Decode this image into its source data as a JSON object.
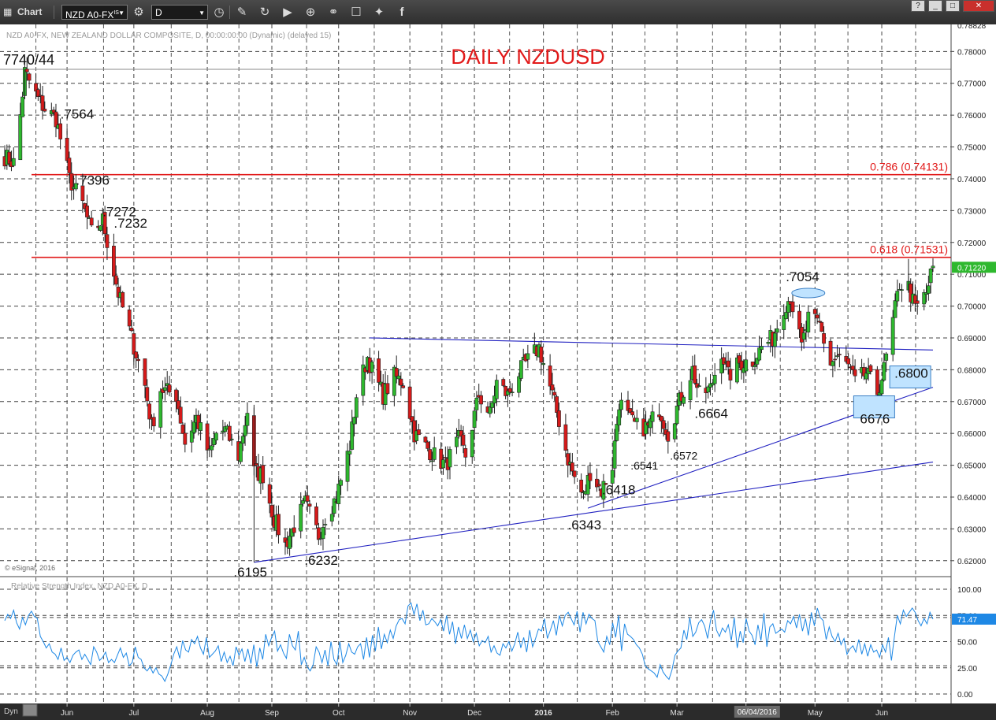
{
  "toolbar": {
    "app_label": "Chart",
    "symbol": "NZD A0-FX",
    "symbol_superscript": "IS",
    "interval": "D",
    "icons": [
      "chart-icon",
      "dropdown-arrow-icon",
      "settings-icon",
      "clock-icon",
      "pencil-icon",
      "cycle-icon",
      "play-icon",
      "zoom-icon",
      "link-icon",
      "comment-icon",
      "twitter-icon",
      "facebook-icon"
    ],
    "window_buttons": [
      "?",
      "_",
      "□",
      "✕"
    ]
  },
  "chart_data": [
    {
      "type": "candlestick",
      "title": "DAILY NZDUSD",
      "subtitle": "NZD A0-FX, NEW ZEALAND DOLLAR COMPOSITE, D, 00:00:00:00 (Dynamic) (delayed 15)",
      "copyright": "© eSignal, 2016",
      "ylim": [
        0.615,
        0.7885
      ],
      "y_ticks": [
        0.62,
        0.63,
        0.64,
        0.65,
        0.66,
        0.67,
        0.68,
        0.69,
        0.7,
        0.71,
        0.72,
        0.73,
        0.74,
        0.75,
        0.76,
        0.77,
        0.78
      ],
      "y_tick_labels": [
        "0.62000",
        "0.63000",
        "0.64000",
        "0.65000",
        "0.66000",
        "0.67000",
        "0.68000",
        "0.69000",
        "0.70000",
        "0.71000",
        "0.72000",
        "0.73000",
        "0.74000",
        "0.75000",
        "0.76000",
        "0.77000",
        "0.78000"
      ],
      "top_value_label": "0.78828",
      "last_price_label": "0.71220",
      "last_price": 0.7122,
      "x_ticks": [
        "Jun",
        "Jul",
        "Aug",
        "Sep",
        "Oct",
        "Nov",
        "Dec",
        "2016",
        "Feb",
        "Mar",
        "Apr",
        "May",
        "Jun"
      ],
      "x_tick_dates": [
        "2015-06-01",
        "2015-07-01",
        "2015-08-03",
        "2015-09-01",
        "2015-10-01",
        "2015-11-02",
        "2015-12-01",
        "2016-01-01",
        "2016-02-01",
        "2016-03-01",
        "2016-04-01",
        "2016-05-02",
        "2016-06-01"
      ],
      "cursor_date_label": "06/04/2016",
      "date_range": [
        "2015-05-04",
        "2016-06-24"
      ],
      "key_points": [
        {
          "label": "7740/44",
          "date": "2015-05-13",
          "value": 0.7744
        },
        {
          "label": ".7564",
          "date": "2015-05-29",
          "value": 0.7564
        },
        {
          "label": ".7396",
          "date": "2015-06-05",
          "value": 0.7396
        },
        {
          "label": ".7272",
          "date": "2015-06-17",
          "value": 0.7272
        },
        {
          "label": ".7232",
          "date": "2015-06-22",
          "value": 0.7232
        },
        {
          "label": ".6195",
          "date": "2015-08-24",
          "value": 0.6195
        },
        {
          "label": ".6232",
          "date": "2015-09-22",
          "value": 0.6232
        },
        {
          "label": ".6343",
          "date": "2016-01-19",
          "value": 0.6343
        },
        {
          "label": ".6418",
          "date": "2016-01-28",
          "value": 0.6418
        },
        {
          "label": ".6541",
          "date": "2016-02-12",
          "value": 0.6541
        },
        {
          "label": ".6572",
          "date": "2016-02-29",
          "value": 0.6572
        },
        {
          "label": ".6664",
          "date": "2016-03-11",
          "value": 0.6664
        },
        {
          "label": ".7054",
          "date": "2016-04-21",
          "value": 0.7054
        },
        {
          "label": "6676",
          "date": "2016-05-30",
          "value": 0.6676
        },
        {
          "label": ".6800",
          "date": "2016-06-06",
          "value": 0.68
        }
      ],
      "horizontal_lines": [
        {
          "label": "0.786 (0.74131)",
          "value": 0.74131,
          "color": "#e21a1a"
        },
        {
          "label": "0.618 (0.71531)",
          "value": 0.71531,
          "color": "#e21a1a"
        },
        {
          "label": "",
          "value": 0.7744,
          "color": "#888888"
        }
      ],
      "trend_lines": [
        {
          "from": {
            "date": "2015-08-24",
            "value": 0.6195
          },
          "to": {
            "date": "2016-06-24",
            "value": 0.651
          },
          "color": "#2020c0"
        },
        {
          "from": {
            "date": "2016-01-21",
            "value": 0.6365
          },
          "to": {
            "date": "2016-06-24",
            "value": 0.6745
          },
          "color": "#2020c0"
        },
        {
          "from": {
            "date": "2015-10-15",
            "value": 0.69
          },
          "to": {
            "date": "2016-06-24",
            "value": 0.6862
          },
          "color": "#2020c0"
        }
      ],
      "up_color": "#2eb82e",
      "down_color": "#d61a1a",
      "ohlc_anchors": [
        [
          "2015-05-04",
          0.747
        ],
        [
          "2015-05-08",
          0.745
        ],
        [
          "2015-05-11",
          0.76
        ],
        [
          "2015-05-13",
          0.7735
        ],
        [
          "2015-05-19",
          0.765
        ],
        [
          "2015-05-22",
          0.762
        ],
        [
          "2015-05-27",
          0.759
        ],
        [
          "2015-06-02",
          0.74
        ],
        [
          "2015-06-08",
          0.732
        ],
        [
          "2015-06-12",
          0.723
        ],
        [
          "2015-06-17",
          0.727
        ],
        [
          "2015-06-24",
          0.704
        ],
        [
          "2015-06-30",
          0.69
        ],
        [
          "2015-07-06",
          0.675
        ],
        [
          "2015-07-09",
          0.662
        ],
        [
          "2015-07-13",
          0.674
        ],
        [
          "2015-07-20",
          0.672
        ],
        [
          "2015-07-24",
          0.657
        ],
        [
          "2015-07-29",
          0.665
        ],
        [
          "2015-08-04",
          0.653
        ],
        [
          "2015-08-07",
          0.66
        ],
        [
          "2015-08-11",
          0.661
        ],
        [
          "2015-08-17",
          0.653
        ],
        [
          "2015-08-21",
          0.667
        ],
        [
          "2015-08-24",
          0.648
        ],
        [
          "2015-08-28",
          0.647
        ],
        [
          "2015-09-02",
          0.633
        ],
        [
          "2015-09-07",
          0.625
        ],
        [
          "2015-09-11",
          0.631
        ],
        [
          "2015-09-16",
          0.638
        ],
        [
          "2015-09-22",
          0.628
        ],
        [
          "2015-09-25",
          0.634
        ],
        [
          "2015-09-30",
          0.64
        ],
        [
          "2015-10-06",
          0.656
        ],
        [
          "2015-10-09",
          0.672
        ],
        [
          "2015-10-14",
          0.684
        ],
        [
          "2015-10-16",
          0.68
        ],
        [
          "2015-10-21",
          0.672
        ],
        [
          "2015-10-26",
          0.678
        ],
        [
          "2015-10-30",
          0.676
        ],
        [
          "2015-11-04",
          0.66
        ],
        [
          "2015-11-09",
          0.656
        ],
        [
          "2015-11-13",
          0.653
        ],
        [
          "2015-11-18",
          0.65
        ],
        [
          "2015-11-24",
          0.658
        ],
        [
          "2015-11-27",
          0.653
        ],
        [
          "2015-12-03",
          0.672
        ],
        [
          "2015-12-08",
          0.666
        ],
        [
          "2015-12-11",
          0.676
        ],
        [
          "2015-12-16",
          0.672
        ],
        [
          "2015-12-21",
          0.679
        ],
        [
          "2015-12-24",
          0.682
        ],
        [
          "2015-12-30",
          0.687
        ],
        [
          "2016-01-05",
          0.672
        ],
        [
          "2016-01-08",
          0.664
        ],
        [
          "2016-01-12",
          0.652
        ],
        [
          "2016-01-15",
          0.646
        ],
        [
          "2016-01-19",
          0.64
        ],
        [
          "2016-01-22",
          0.648
        ],
        [
          "2016-01-27",
          0.642
        ],
        [
          "2016-02-01",
          0.65
        ],
        [
          "2016-02-04",
          0.67
        ],
        [
          "2016-02-09",
          0.664
        ],
        [
          "2016-02-12",
          0.662
        ],
        [
          "2016-02-17",
          0.662
        ],
        [
          "2016-02-22",
          0.668
        ],
        [
          "2016-02-26",
          0.66
        ],
        [
          "2016-03-03",
          0.672
        ],
        [
          "2016-03-08",
          0.68
        ],
        [
          "2016-03-11",
          0.672
        ],
        [
          "2016-03-16",
          0.674
        ],
        [
          "2016-03-21",
          0.686
        ],
        [
          "2016-03-24",
          0.678
        ],
        [
          "2016-03-29",
          0.682
        ],
        [
          "2016-04-04",
          0.683
        ],
        [
          "2016-04-08",
          0.687
        ],
        [
          "2016-04-13",
          0.69
        ],
        [
          "2016-04-18",
          0.7
        ],
        [
          "2016-04-21",
          0.703
        ],
        [
          "2016-04-26",
          0.687
        ],
        [
          "2016-04-29",
          0.696
        ],
        [
          "2016-05-04",
          0.694
        ],
        [
          "2016-05-09",
          0.682
        ],
        [
          "2016-05-12",
          0.684
        ],
        [
          "2016-05-17",
          0.681
        ],
        [
          "2016-05-20",
          0.676
        ],
        [
          "2016-05-25",
          0.679
        ],
        [
          "2016-05-30",
          0.673
        ],
        [
          "2016-06-02",
          0.68
        ],
        [
          "2016-06-06",
          0.695
        ],
        [
          "2016-06-09",
          0.707
        ],
        [
          "2016-06-13",
          0.706
        ],
        [
          "2016-06-16",
          0.699
        ],
        [
          "2016-06-21",
          0.704
        ],
        [
          "2016-06-24",
          0.7122
        ]
      ]
    },
    {
      "type": "line",
      "title": "Relative Strength Index, NZD A0-FX, D",
      "ylim": [
        0,
        100
      ],
      "y_ticks": [
        0,
        25,
        50,
        75,
        100
      ],
      "y_tick_labels": [
        "0.00",
        "25.00",
        "50.00",
        "75.00",
        "100.00"
      ],
      "last_value_label": "71.47",
      "last_value": 71.47,
      "bottom_label": "Dyn",
      "line_color": "#1e88e5",
      "series": [
        {
          "values": [
            70,
            76,
            72,
            80,
            68,
            62,
            73,
            66,
            75,
            79,
            74,
            72,
            55,
            50,
            44,
            48,
            40,
            38,
            33,
            44,
            32,
            35,
            30,
            37,
            40,
            42,
            33,
            38,
            33,
            28,
            45,
            40,
            32,
            35,
            40,
            30,
            33,
            30,
            37,
            44,
            35,
            39,
            27,
            30,
            45,
            35,
            33,
            25,
            22,
            26,
            20,
            25,
            19,
            17,
            12,
            19,
            28,
            38,
            45,
            34,
            51,
            42,
            40,
            52,
            48,
            55,
            44,
            38,
            54,
            35,
            38,
            41,
            46,
            31,
            40,
            30,
            36,
            27,
            45,
            37,
            43,
            31,
            43,
            29,
            47,
            26,
            44,
            33,
            57,
            46,
            54,
            60,
            41,
            47,
            39,
            34,
            57,
            46,
            42,
            60,
            28,
            35,
            26,
            22,
            28,
            45,
            40,
            30,
            42,
            27,
            50,
            33,
            28,
            50,
            30,
            37,
            48,
            40,
            38,
            45,
            48,
            33,
            54,
            35,
            56,
            41,
            64,
            43,
            57,
            49,
            61,
            53,
            65,
            71,
            72,
            67,
            84,
            87,
            76,
            86,
            70,
            80,
            66,
            67,
            72,
            69,
            65,
            71,
            60,
            75,
            57,
            69,
            48,
            64,
            53,
            66,
            53,
            61,
            50,
            58,
            46,
            51,
            49,
            55,
            40,
            46,
            39,
            37,
            48,
            44,
            50,
            41,
            48,
            59,
            44,
            54,
            40,
            61,
            45,
            53,
            62,
            60,
            72,
            53,
            61,
            70,
            56,
            75,
            65,
            75,
            78,
            72,
            66,
            79,
            59,
            78,
            67,
            76,
            72,
            70,
            50,
            45,
            40,
            55,
            47,
            68,
            54,
            75,
            41,
            67,
            57,
            55,
            52,
            47,
            44,
            38,
            27,
            24,
            22,
            20,
            16,
            28,
            21,
            17,
            14,
            23,
            37,
            41,
            44,
            61,
            52,
            73,
            55,
            59,
            68,
            71,
            65,
            53,
            70,
            80,
            61,
            55,
            63,
            59,
            66,
            51,
            73,
            44,
            60,
            49,
            72,
            60,
            56,
            47,
            66,
            51,
            77,
            45,
            64,
            67,
            58,
            60,
            62,
            59,
            70,
            67,
            74,
            63,
            76,
            60,
            72,
            56,
            78,
            65,
            82,
            73,
            70,
            52,
            64,
            55,
            50,
            58,
            47,
            53,
            38,
            43,
            46,
            40,
            52,
            38,
            48,
            36,
            47,
            40,
            42,
            35,
            47,
            40,
            54,
            32,
            55,
            75,
            67,
            80,
            74,
            78,
            82,
            78,
            70,
            65,
            72,
            67,
            78,
            71.47
          ]
        }
      ]
    }
  ]
}
